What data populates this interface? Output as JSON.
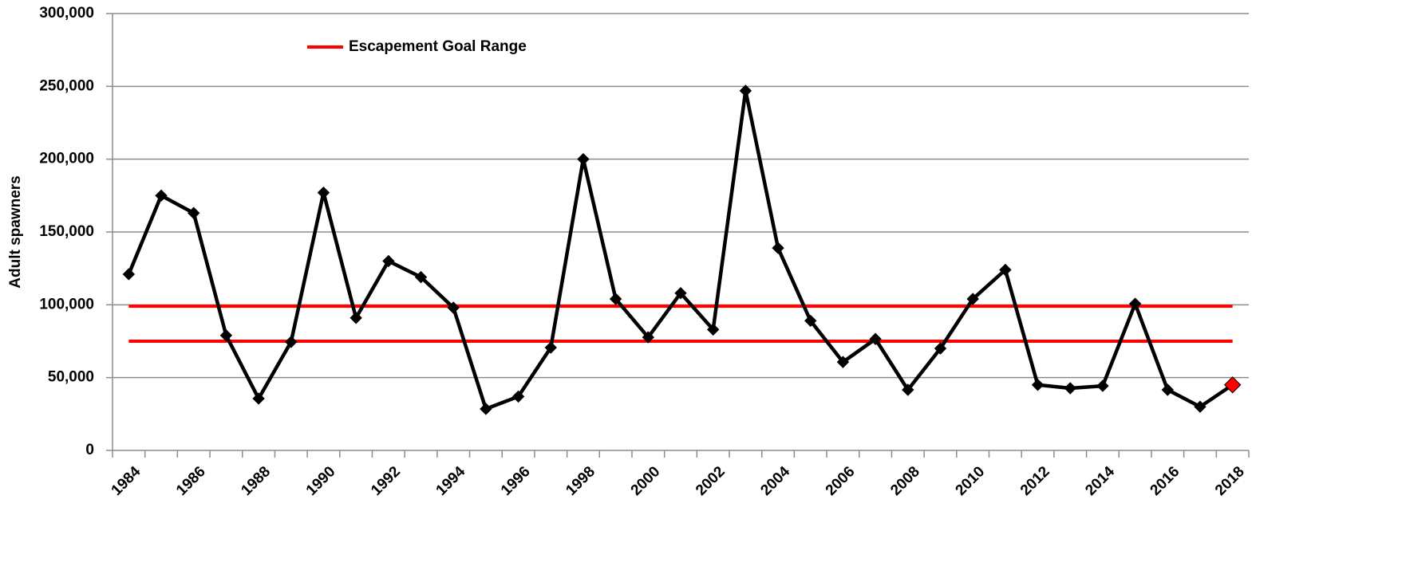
{
  "chart_data": {
    "type": "line",
    "y_label": "Adult spawners",
    "categories": [
      "1984",
      null,
      "1986",
      null,
      "1988",
      null,
      "1990",
      null,
      "1992",
      null,
      "1994",
      null,
      "1996",
      null,
      "1998",
      null,
      "2000",
      null,
      "2002",
      null,
      "2004",
      null,
      "2006",
      null,
      "2008",
      null,
      "2010",
      null,
      "2012",
      null,
      "2014",
      null,
      "2016",
      null,
      "2018"
    ],
    "series": [
      {
        "name": "Adult spawners",
        "color": "#000000",
        "values": [
          121000,
          175000,
          163000,
          79000,
          35600,
          74500,
          177000,
          91000,
          130000,
          119000,
          98000,
          28500,
          37000,
          70600,
          200000,
          104000,
          77700,
          108000,
          83000,
          247000,
          139000,
          89000,
          60700,
          76500,
          41600,
          70000,
          104000,
          124000,
          45000,
          42700,
          44300,
          100700,
          41600,
          30000,
          45000
        ]
      }
    ],
    "highlight": {
      "index": 34,
      "color": "#ff0000"
    },
    "goal_range": {
      "name": "Escapement Goal Range",
      "color": "#ff0000",
      "values": [
        75000,
        99000
      ]
    },
    "ylim": [
      0,
      300000
    ],
    "yticks": [
      0,
      {
        "value": 50000,
        "label": "50,000"
      },
      {
        "value": 100000,
        "label": "100,000"
      },
      {
        "value": 150000,
        "label": "150,000"
      },
      {
        "value": 200000,
        "label": "200,000"
      },
      {
        "value": 250000,
        "label": "250,000"
      },
      {
        "value": 300000,
        "label": "300,000"
      }
    ],
    "grid": true
  }
}
